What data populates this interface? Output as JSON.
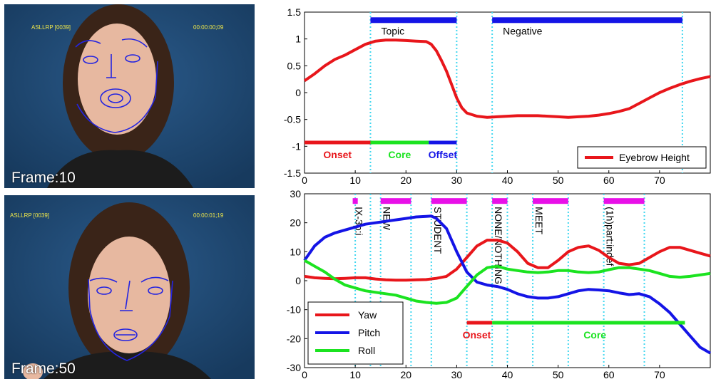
{
  "frames": [
    {
      "id": "ASLLRP [0039]",
      "timecode": "00:00:00;09",
      "label": "Frame:10"
    },
    {
      "id": "ASLLRP [0039]",
      "timecode": "00:00:01;19",
      "label": "Frame:50"
    }
  ],
  "colors": {
    "red": "#e8161b",
    "green": "#1be320",
    "blue": "#1414e6",
    "magenta": "#e810e8",
    "cyan": "#42d7f0"
  },
  "markers": [
    13,
    30,
    37,
    74.5
  ],
  "markers_bottom": [
    10,
    13,
    15,
    21,
    25,
    32,
    37,
    40,
    45,
    52,
    59,
    67
  ],
  "chart_data": [
    {
      "type": "line",
      "xlim": [
        0,
        80
      ],
      "ylim": [
        -1.5,
        1.5
      ],
      "xticks": [
        "0",
        "10",
        "20",
        "30",
        "40",
        "50",
        "60",
        "70"
      ],
      "yticks": [
        "1.5",
        "1",
        "0.5",
        "0",
        "-0.5",
        "-1",
        "-1.5"
      ],
      "series": [
        {
          "name": "Eyebrow Height",
          "x": [
            0,
            2,
            4,
            6,
            8,
            10,
            12,
            14,
            16,
            18,
            20,
            22,
            24,
            25,
            26,
            27,
            28,
            29,
            30,
            31,
            32,
            34,
            36,
            38,
            40,
            42,
            44,
            46,
            48,
            50,
            52,
            54,
            56,
            58,
            60,
            62,
            64,
            66,
            68,
            70,
            72,
            74,
            76,
            78,
            80
          ],
          "y": [
            0.22,
            0.35,
            0.5,
            0.62,
            0.7,
            0.8,
            0.9,
            0.96,
            0.98,
            0.98,
            0.97,
            0.96,
            0.95,
            0.9,
            0.78,
            0.6,
            0.4,
            0.15,
            -0.1,
            -0.28,
            -0.38,
            -0.44,
            -0.46,
            -0.45,
            -0.44,
            -0.43,
            -0.43,
            -0.43,
            -0.44,
            -0.45,
            -0.46,
            -0.45,
            -0.44,
            -0.42,
            -0.39,
            -0.35,
            -0.3,
            -0.2,
            -0.1,
            0.0,
            0.08,
            0.15,
            0.21,
            0.26,
            0.3
          ]
        }
      ],
      "bars": [
        {
          "label": "Topic",
          "start": 13,
          "end": 30,
          "y": 1.35
        },
        {
          "label": "Negative",
          "start": 37,
          "end": 74.5,
          "y": 1.35
        }
      ],
      "phases": [
        {
          "label": "Onset",
          "start": 0,
          "end": 13,
          "color": "red"
        },
        {
          "label": "Core",
          "start": 13,
          "end": 24.5,
          "color": "green"
        },
        {
          "label": "Offset",
          "start": 24.5,
          "end": 30,
          "color": "blue"
        }
      ],
      "phase_y": -0.93,
      "legend": "bottom-right"
    },
    {
      "type": "line",
      "xlim": [
        0,
        80
      ],
      "ylim": [
        -30,
        30
      ],
      "xticks": [
        "0",
        "10",
        "20",
        "30",
        "40",
        "50",
        "60",
        "70"
      ],
      "yticks": [
        "30",
        "20",
        "10",
        "0",
        "-10",
        "-20",
        "-30"
      ],
      "series": [
        {
          "name": "Yaw",
          "x": [
            0,
            2,
            4,
            6,
            8,
            10,
            12,
            14,
            16,
            18,
            20,
            22,
            24,
            26,
            28,
            30,
            32,
            34,
            36,
            38,
            40,
            42,
            44,
            46,
            48,
            50,
            52,
            54,
            56,
            58,
            60,
            62,
            64,
            66,
            68,
            70,
            72,
            74,
            76,
            78,
            80
          ],
          "y": [
            1.5,
            1.0,
            0.8,
            0.7,
            0.8,
            1.0,
            1.0,
            0.6,
            0.3,
            0.2,
            0.2,
            0.3,
            0.4,
            0.8,
            1.5,
            4,
            8,
            12,
            14,
            14,
            13,
            10,
            6,
            4.5,
            4.5,
            7,
            10,
            11.5,
            12,
            10.5,
            8,
            6,
            5.5,
            6,
            8,
            10,
            11.5,
            11.5,
            10.5,
            9.5,
            8.5
          ]
        },
        {
          "name": "Pitch",
          "x": [
            0,
            2,
            4,
            6,
            8,
            10,
            12,
            14,
            16,
            18,
            20,
            22,
            24,
            25,
            26,
            28,
            30,
            32,
            34,
            36,
            38,
            40,
            42,
            44,
            46,
            48,
            50,
            52,
            54,
            56,
            58,
            60,
            62,
            64,
            66,
            68,
            70,
            72,
            74,
            76,
            78,
            80
          ],
          "y": [
            7,
            12,
            15,
            16.5,
            17.5,
            18.5,
            19.5,
            20,
            20.5,
            21,
            21.5,
            22,
            22.2,
            22.3,
            21.5,
            18,
            10,
            3,
            -0.5,
            -1.5,
            -2,
            -3,
            -4.5,
            -5.5,
            -6,
            -6,
            -5.5,
            -4.5,
            -3.5,
            -3,
            -3.2,
            -3.5,
            -4.2,
            -4.8,
            -4.5,
            -5.5,
            -8,
            -11,
            -15,
            -19,
            -23,
            -25
          ]
        },
        {
          "name": "Roll",
          "x": [
            0,
            2,
            4,
            6,
            8,
            10,
            12,
            14,
            16,
            18,
            20,
            22,
            24,
            26,
            28,
            30,
            32,
            34,
            36,
            38,
            40,
            42,
            44,
            46,
            48,
            50,
            52,
            54,
            56,
            58,
            60,
            62,
            64,
            66,
            68,
            70,
            72,
            74,
            76,
            78,
            80
          ],
          "y": [
            7,
            5,
            3,
            0.5,
            -1.5,
            -2.5,
            -3.5,
            -4,
            -4.5,
            -5,
            -6,
            -7,
            -7.5,
            -7.8,
            -7.5,
            -6,
            -2,
            2,
            4.5,
            5,
            4,
            3.5,
            3,
            2.8,
            3,
            3.5,
            3.5,
            3,
            2.8,
            3,
            3.8,
            4.5,
            4.5,
            4,
            3.5,
            2.5,
            1.5,
            1.2,
            1.5,
            2,
            2.5
          ]
        }
      ],
      "bars": [
        {
          "label": "IX-3p:i",
          "start": 9.5,
          "end": 10.5,
          "y": 27.5
        },
        {
          "label": "NEW",
          "start": 15,
          "end": 21,
          "y": 27.5
        },
        {
          "label": "STUDENT",
          "start": 25,
          "end": 32,
          "y": 27.5
        },
        {
          "label": "NONE/NOTHING",
          "start": 37,
          "end": 40,
          "y": 27.5
        },
        {
          "label": "MEET",
          "start": 45,
          "end": 52,
          "y": 27.5
        },
        {
          "label": "(1h)part:indef",
          "start": 59,
          "end": 67,
          "y": 27.5
        }
      ],
      "phases": [
        {
          "label": "Onset",
          "start": 32,
          "end": 37,
          "color": "red"
        },
        {
          "label": "Core",
          "start": 37,
          "end": 75,
          "color": "green"
        }
      ],
      "phase_y": -14.5,
      "legend": "bottom-left"
    }
  ]
}
